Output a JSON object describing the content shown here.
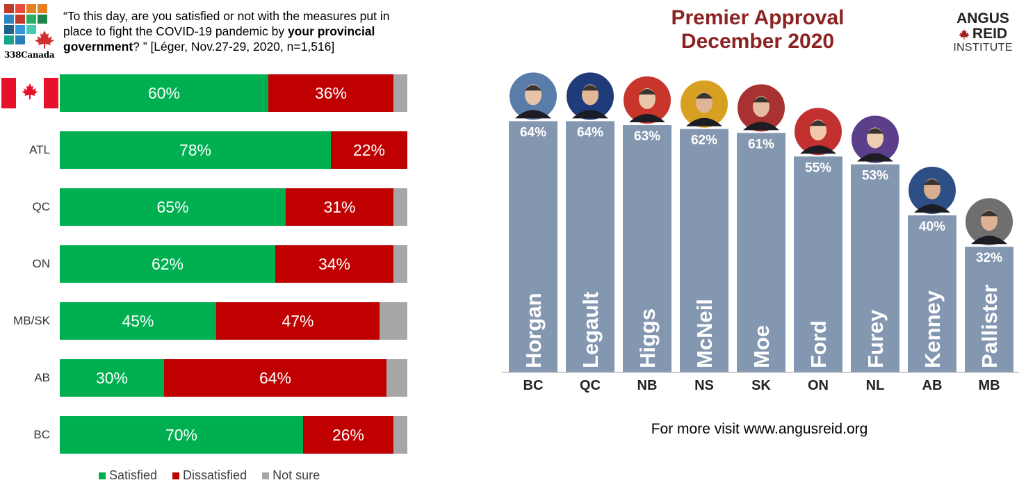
{
  "left": {
    "logo_text": "338Canada",
    "question": {
      "part1": "“To this day, are you satisfied or not with the measures put in place to fight the COVID-19 pandemic by ",
      "bold": "your provincial government",
      "part2": "? ” [Léger, Nov.27-29, 2020, n=1,516]"
    },
    "legend": {
      "satisfied": "Satisfied",
      "dissatisfied": "Dissatisfied",
      "not_sure": "Not sure"
    },
    "colors": {
      "satisfied": "#00b050",
      "dissatisfied": "#c00000",
      "not_sure": "#a6a6a6"
    }
  },
  "right": {
    "title_line1": "Premier Approval",
    "title_line2": "December 2020",
    "logo": {
      "line1": "ANGUS",
      "line2": "REID",
      "line3": "INSTITUTE"
    },
    "footer": "For more visit www.angusreid.org",
    "colors": {
      "bar": "#8497b0",
      "title": "#8b2323"
    }
  },
  "chart_data": [
    {
      "type": "bar",
      "orientation": "horizontal",
      "stacked": true,
      "categories": [
        "Canada",
        "ATL",
        "QC",
        "ON",
        "MB/SK",
        "AB",
        "BC"
      ],
      "series": [
        {
          "name": "Satisfied",
          "values": [
            60,
            78,
            65,
            62,
            45,
            30,
            70
          ]
        },
        {
          "name": "Dissatisfied",
          "values": [
            36,
            22,
            31,
            34,
            47,
            64,
            26
          ]
        },
        {
          "name": "Not sure",
          "values": [
            4,
            0,
            4,
            4,
            8,
            6,
            4
          ]
        }
      ],
      "value_labels": {
        "Satisfied": [
          "60%",
          "78%",
          "65%",
          "62%",
          "45%",
          "30%",
          "70%"
        ],
        "Dissatisfied": [
          "36%",
          "22%",
          "31%",
          "34%",
          "47%",
          "64%",
          "26%"
        ]
      },
      "xlim": [
        0,
        100
      ],
      "legend_position": "bottom"
    },
    {
      "type": "bar",
      "title": "Premier Approval December 2020",
      "categories": [
        "BC",
        "QC",
        "NB",
        "NS",
        "SK",
        "ON",
        "NL",
        "AB",
        "MB"
      ],
      "premiers": [
        "Horgan",
        "Legault",
        "Higgs",
        "McNeil",
        "Moe",
        "Ford",
        "Furey",
        "Kenney",
        "Pallister"
      ],
      "values": [
        64,
        64,
        63,
        62,
        61,
        55,
        53,
        40,
        32
      ],
      "value_labels": [
        "64%",
        "64%",
        "63%",
        "62%",
        "61%",
        "55%",
        "53%",
        "40%",
        "32%"
      ],
      "ylim": [
        0,
        100
      ]
    }
  ]
}
